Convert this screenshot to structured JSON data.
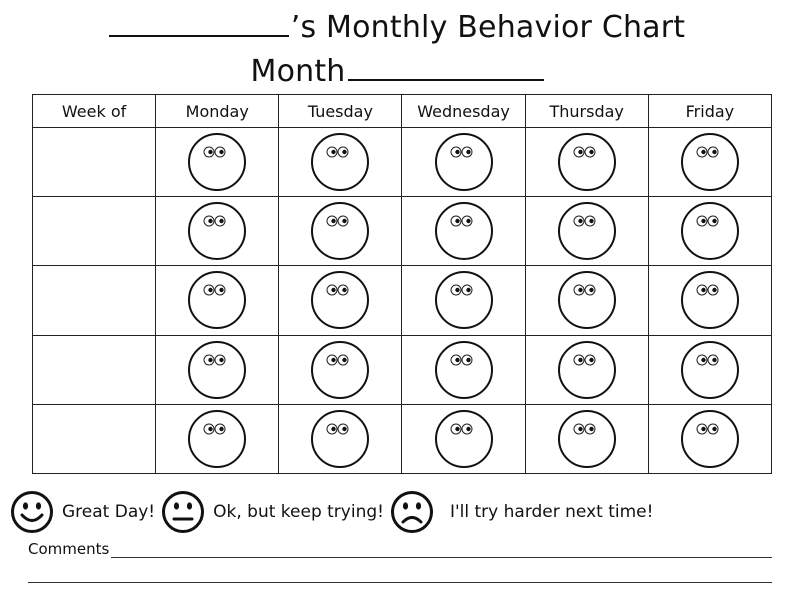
{
  "title": {
    "suffix": "’s Monthly Behavior Chart",
    "month_label": "Month"
  },
  "table": {
    "headers": [
      "Week of",
      "Monday",
      "Tuesday",
      "Wednesday",
      "Thursday",
      "Friday"
    ],
    "week_rows": 5,
    "cell_icon": "blank-face-icon"
  },
  "legend": {
    "great": {
      "label": "Great Day!",
      "icon": "smiley-face-icon"
    },
    "ok": {
      "label": "Ok, but keep trying!",
      "icon": "neutral-face-icon"
    },
    "sad": {
      "label": "I'll try harder next time!",
      "icon": "frowning-face-icon"
    }
  },
  "comments": {
    "label": "Comments"
  },
  "colors": {
    "ink": "#111111",
    "background": "#ffffff"
  }
}
